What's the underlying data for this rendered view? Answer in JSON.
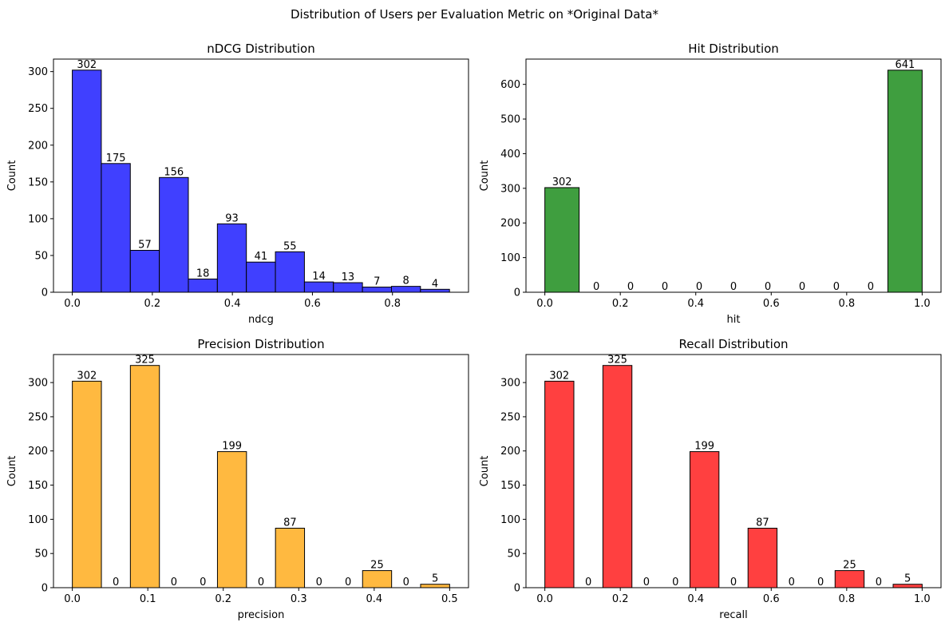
{
  "suptitle": "Distribution of Users per Evaluation Metric on *Original Data*",
  "chart_data": [
    {
      "type": "bar",
      "title": "nDCG Distribution",
      "xlabel": "ndcg",
      "ylabel": "Count",
      "color": "#4040ff",
      "bins": [
        {
          "x0": 0.0,
          "x1": 0.0725,
          "count": 302
        },
        {
          "x0": 0.0725,
          "x1": 0.145,
          "count": 175
        },
        {
          "x0": 0.145,
          "x1": 0.2175,
          "count": 57
        },
        {
          "x0": 0.2175,
          "x1": 0.29,
          "count": 156
        },
        {
          "x0": 0.29,
          "x1": 0.3625,
          "count": 18
        },
        {
          "x0": 0.3625,
          "x1": 0.435,
          "count": 93
        },
        {
          "x0": 0.435,
          "x1": 0.5075,
          "count": 41
        },
        {
          "x0": 0.5075,
          "x1": 0.58,
          "count": 55
        },
        {
          "x0": 0.58,
          "x1": 0.6525,
          "count": 14
        },
        {
          "x0": 0.6525,
          "x1": 0.725,
          "count": 13
        },
        {
          "x0": 0.725,
          "x1": 0.7975,
          "count": 7
        },
        {
          "x0": 0.7975,
          "x1": 0.87,
          "count": 8
        },
        {
          "x0": 0.87,
          "x1": 0.9425,
          "count": 4
        }
      ],
      "xlim": [
        -0.047,
        0.99
      ],
      "ylim": [
        0,
        317
      ],
      "xticks": [
        0.0,
        0.2,
        0.4,
        0.6,
        0.8
      ],
      "xtick_labels": [
        "0.0",
        "0.2",
        "0.4",
        "0.6",
        "0.8"
      ],
      "yticks": [
        0,
        50,
        100,
        150,
        200,
        250,
        300
      ],
      "ytick_labels": [
        "0",
        "50",
        "100",
        "150",
        "200",
        "250",
        "300"
      ]
    },
    {
      "type": "bar",
      "title": "Hit Distribution",
      "xlabel": "hit",
      "ylabel": "Count",
      "color": "#3f9e3f",
      "bins": [
        {
          "x0": 0.0,
          "x1": 0.0909,
          "count": 302
        },
        {
          "x0": 0.0909,
          "x1": 0.1818,
          "count": 0
        },
        {
          "x0": 0.1818,
          "x1": 0.2727,
          "count": 0
        },
        {
          "x0": 0.2727,
          "x1": 0.3636,
          "count": 0
        },
        {
          "x0": 0.3636,
          "x1": 0.4545,
          "count": 0
        },
        {
          "x0": 0.4545,
          "x1": 0.5455,
          "count": 0
        },
        {
          "x0": 0.5455,
          "x1": 0.6364,
          "count": 0
        },
        {
          "x0": 0.6364,
          "x1": 0.7273,
          "count": 0
        },
        {
          "x0": 0.7273,
          "x1": 0.8182,
          "count": 0
        },
        {
          "x0": 0.8182,
          "x1": 0.9091,
          "count": 0
        },
        {
          "x0": 0.9091,
          "x1": 1.0,
          "count": 641
        }
      ],
      "xlim": [
        -0.05,
        1.05
      ],
      "ylim": [
        0,
        673
      ],
      "xticks": [
        0.0,
        0.2,
        0.4,
        0.6,
        0.8,
        1.0
      ],
      "xtick_labels": [
        "0.0",
        "0.2",
        "0.4",
        "0.6",
        "0.8",
        "1.0"
      ],
      "yticks": [
        0,
        100,
        200,
        300,
        400,
        500,
        600
      ],
      "ytick_labels": [
        "0",
        "100",
        "200",
        "300",
        "400",
        "500",
        "600"
      ]
    },
    {
      "type": "bar",
      "title": "Precision Distribution",
      "xlabel": "precision",
      "ylabel": "Count",
      "color": "#ffb940",
      "bins": [
        {
          "x0": 0.0,
          "x1": 0.0385,
          "count": 302
        },
        {
          "x0": 0.0385,
          "x1": 0.0769,
          "count": 0
        },
        {
          "x0": 0.0769,
          "x1": 0.1154,
          "count": 325
        },
        {
          "x0": 0.1154,
          "x1": 0.1538,
          "count": 0
        },
        {
          "x0": 0.1538,
          "x1": 0.1923,
          "count": 0
        },
        {
          "x0": 0.1923,
          "x1": 0.2308,
          "count": 199
        },
        {
          "x0": 0.2308,
          "x1": 0.2692,
          "count": 0
        },
        {
          "x0": 0.2692,
          "x1": 0.3077,
          "count": 87
        },
        {
          "x0": 0.3077,
          "x1": 0.3462,
          "count": 0
        },
        {
          "x0": 0.3462,
          "x1": 0.3846,
          "count": 0
        },
        {
          "x0": 0.3846,
          "x1": 0.4231,
          "count": 25
        },
        {
          "x0": 0.4231,
          "x1": 0.4615,
          "count": 0
        },
        {
          "x0": 0.4615,
          "x1": 0.5,
          "count": 5
        }
      ],
      "xlim": [
        -0.025,
        0.525
      ],
      "ylim": [
        0,
        341
      ],
      "xticks": [
        0.0,
        0.1,
        0.2,
        0.3,
        0.4,
        0.5
      ],
      "xtick_labels": [
        "0.0",
        "0.1",
        "0.2",
        "0.3",
        "0.4",
        "0.5"
      ],
      "yticks": [
        0,
        50,
        100,
        150,
        200,
        250,
        300
      ],
      "ytick_labels": [
        "0",
        "50",
        "100",
        "150",
        "200",
        "250",
        "300"
      ]
    },
    {
      "type": "bar",
      "title": "Recall Distribution",
      "xlabel": "recall",
      "ylabel": "Count",
      "color": "#ff4040",
      "bins": [
        {
          "x0": 0.0,
          "x1": 0.0769,
          "count": 302
        },
        {
          "x0": 0.0769,
          "x1": 0.1538,
          "count": 0
        },
        {
          "x0": 0.1538,
          "x1": 0.2308,
          "count": 325
        },
        {
          "x0": 0.2308,
          "x1": 0.3077,
          "count": 0
        },
        {
          "x0": 0.3077,
          "x1": 0.3846,
          "count": 0
        },
        {
          "x0": 0.3846,
          "x1": 0.4615,
          "count": 199
        },
        {
          "x0": 0.4615,
          "x1": 0.5385,
          "count": 0
        },
        {
          "x0": 0.5385,
          "x1": 0.6154,
          "count": 87
        },
        {
          "x0": 0.6154,
          "x1": 0.6923,
          "count": 0
        },
        {
          "x0": 0.6923,
          "x1": 0.7692,
          "count": 0
        },
        {
          "x0": 0.7692,
          "x1": 0.8462,
          "count": 25
        },
        {
          "x0": 0.8462,
          "x1": 0.9231,
          "count": 0
        },
        {
          "x0": 0.9231,
          "x1": 1.0,
          "count": 5
        }
      ],
      "xlim": [
        -0.05,
        1.05
      ],
      "ylim": [
        0,
        341
      ],
      "xticks": [
        0.0,
        0.2,
        0.4,
        0.6,
        0.8,
        1.0
      ],
      "xtick_labels": [
        "0.0",
        "0.2",
        "0.4",
        "0.6",
        "0.8",
        "1.0"
      ],
      "yticks": [
        0,
        50,
        100,
        150,
        200,
        250,
        300
      ],
      "ytick_labels": [
        "0",
        "50",
        "100",
        "150",
        "200",
        "250",
        "300"
      ]
    }
  ]
}
